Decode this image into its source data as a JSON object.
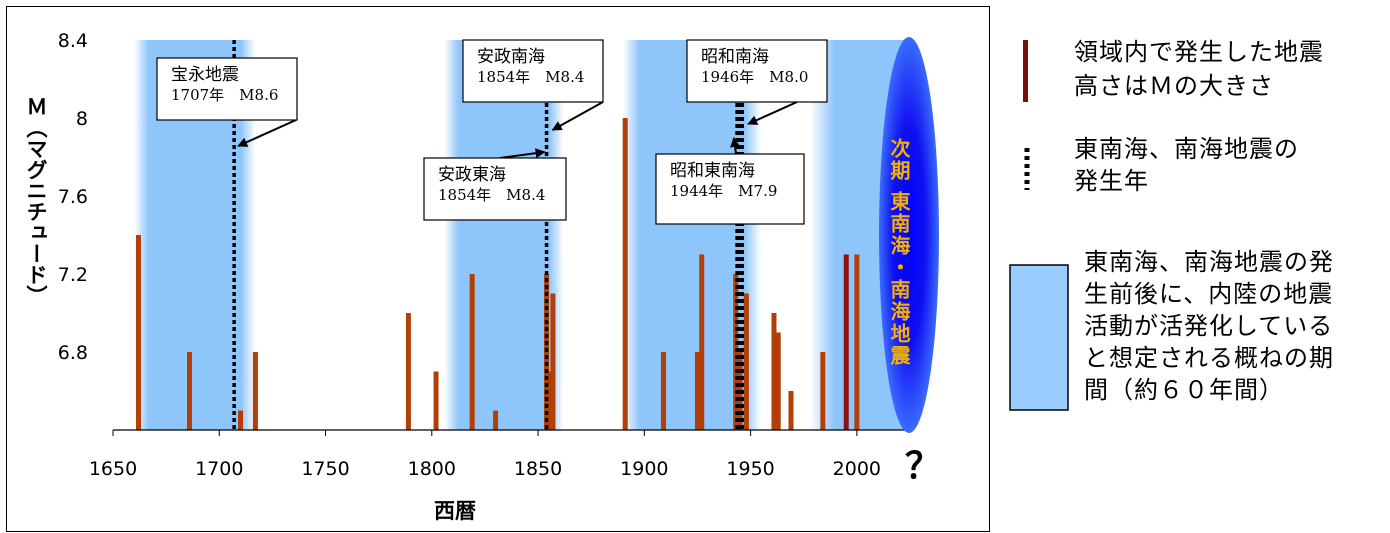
{
  "chart_data": {
    "type": "bar",
    "xlabel": "西暦",
    "ylabel": "Ｍ（マグニチュード）",
    "xlim": [
      1650,
      2025
    ],
    "ylim": [
      6.4,
      8.4
    ],
    "x_ticks": [
      "1650",
      "1700",
      "1750",
      "1800",
      "1850",
      "1900",
      "1950",
      "2000"
    ],
    "y_ticks": [
      "8.4",
      "8",
      "7.6",
      "7.2",
      "6.8"
    ],
    "question_mark": "？",
    "next_label": "次期 東南海・南海地震",
    "bar_color": "#b13f06",
    "bar_color_recent": "#8b1111",
    "period_color": "#8ec5fb",
    "bars": [
      {
        "x": 1662,
        "m": 7.4
      },
      {
        "x": 1686,
        "m": 6.8
      },
      {
        "x": 1710,
        "m": 6.5
      },
      {
        "x": 1717,
        "m": 6.8
      },
      {
        "x": 1789,
        "m": 7.0
      },
      {
        "x": 1802,
        "m": 6.7
      },
      {
        "x": 1819,
        "m": 7.2
      },
      {
        "x": 1830,
        "m": 6.5
      },
      {
        "x": 1854,
        "m": 7.2
      },
      {
        "x": 1855,
        "m": 6.7
      },
      {
        "x": 1857,
        "m": 7.1
      },
      {
        "x": 1891,
        "m": 8.0
      },
      {
        "x": 1909,
        "m": 6.8
      },
      {
        "x": 1925,
        "m": 6.8
      },
      {
        "x": 1927,
        "m": 7.3
      },
      {
        "x": 1943,
        "m": 7.2
      },
      {
        "x": 1945,
        "m": 6.8
      },
      {
        "x": 1948,
        "m": 7.1
      },
      {
        "x": 1961,
        "m": 7.0
      },
      {
        "x": 1963,
        "m": 6.9
      },
      {
        "x": 1969,
        "m": 6.6
      },
      {
        "x": 1984,
        "m": 6.8
      },
      {
        "x": 1995,
        "m": 7.3,
        "recent": true
      },
      {
        "x": 2000,
        "m": 7.3
      }
    ],
    "periods": [
      [
        1660,
        1717
      ],
      [
        1806,
        1862
      ],
      [
        1890,
        1955
      ],
      [
        1978,
        2024
      ]
    ],
    "events": [
      {
        "year": 1707,
        "name": "宝永地震",
        "detail": "1707年　M8.6"
      },
      {
        "year": 1854,
        "name": "安政南海",
        "detail": "1854年　M8.4"
      },
      {
        "year": 1854,
        "name": "安政東海",
        "detail": "1854年　M8.4"
      },
      {
        "year": 1946,
        "name": "昭和南海",
        "detail": "1946年　M8.0"
      },
      {
        "year": 1944,
        "name": "昭和東南海",
        "detail": "1944年　M7.9"
      }
    ]
  },
  "legend": {
    "bar_line1": "領域内で発生した地震",
    "bar_line2": "高さはＭの大きさ",
    "dotted_line1": "東南海、南海地震の",
    "dotted_line2": "発生年",
    "period_lines": [
      "東南海、南海地震の発",
      "生前後に、内陸の地震",
      "活動が活発化している",
      "と想定される概ねの期",
      "間（約６０年間）"
    ]
  }
}
